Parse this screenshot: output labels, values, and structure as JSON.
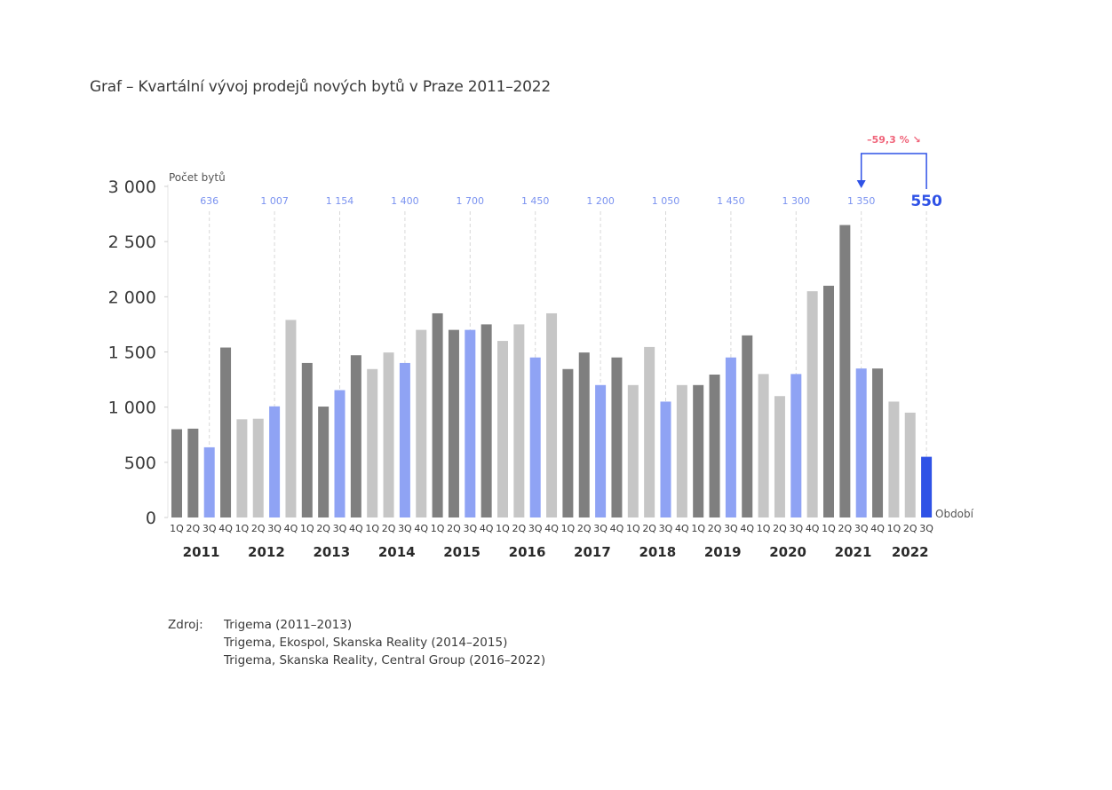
{
  "title": "Graf – Kvartální vývoj prodejů nových bytů v Praze 2011–2022",
  "source": {
    "label": "Zdroj:",
    "lines": [
      "Trigema (2011–2013)",
      "Trigema, Ekospol, Skanska Reality (2014–2015)",
      "Trigema, Skanska Reality, Central Group (2016–2022)"
    ]
  },
  "colors": {
    "dark": "#7f7f7f",
    "light": "#c6c6c6",
    "blue": "#8fa3f4",
    "highlight": "#2f52e6",
    "annotation_blue": "#7b93f0",
    "decline_red": "#f0647a",
    "axis_text": "#3a3a3a"
  },
  "chart_data": {
    "type": "bar",
    "ylabel": "Počet bytů",
    "xlabel": "Období",
    "ylim": [
      0,
      3000
    ],
    "yticks": [
      0,
      500,
      1000,
      1500,
      2000,
      2500,
      3000
    ],
    "ytick_labels": [
      "0",
      "500",
      "1 000",
      "1 500",
      "2 000",
      "2 500",
      "3 000"
    ],
    "grid": false,
    "quarter_labels": [
      "1Q",
      "2Q",
      "3Q",
      "4Q"
    ],
    "years": [
      "2011",
      "2012",
      "2013",
      "2014",
      "2015",
      "2016",
      "2017",
      "2018",
      "2019",
      "2020",
      "2021",
      "2022"
    ],
    "values": [
      800,
      805,
      636,
      1540,
      890,
      895,
      1007,
      1790,
      1400,
      1005,
      1154,
      1470,
      1345,
      1495,
      1400,
      1700,
      1850,
      1700,
      1700,
      1750,
      1600,
      1750,
      1450,
      1850,
      1345,
      1495,
      1200,
      1450,
      1200,
      1545,
      1050,
      1200,
      1200,
      1295,
      1450,
      1650,
      1300,
      1100,
      1300,
      2050,
      2100,
      2650,
      1350,
      1350,
      1050,
      950,
      550
    ],
    "bar_styles": [
      "dark",
      "dark",
      "blue",
      "dark",
      "light",
      "light",
      "blue",
      "light",
      "dark",
      "dark",
      "blue",
      "dark",
      "light",
      "light",
      "blue",
      "light",
      "dark",
      "dark",
      "blue",
      "dark",
      "light",
      "light",
      "blue",
      "light",
      "dark",
      "dark",
      "blue",
      "dark",
      "light",
      "light",
      "blue",
      "light",
      "dark",
      "dark",
      "blue",
      "dark",
      "light",
      "light",
      "blue",
      "light",
      "dark",
      "dark",
      "blue",
      "dark",
      "light",
      "light",
      "highlight"
    ],
    "q3_annotations": [
      "636",
      "1 007",
      "1 154",
      "1 400",
      "1 700",
      "1 450",
      "1 200",
      "1 050",
      "1 450",
      "1 300",
      "1 350",
      "550"
    ],
    "change_label": "–59,3 % ↘"
  }
}
